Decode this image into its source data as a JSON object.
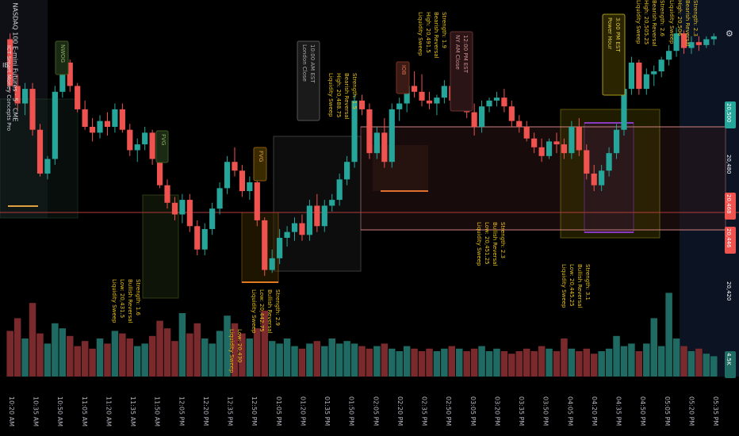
{
  "header": {
    "symbol_line": "NASDAQ 100 E-mini Futures · 5 · CME",
    "indicator_line_1": "IB",
    "indicator_line_2": "ICT Smart Money Concepts Pro",
    "settings_label": "⚙"
  },
  "colors": {
    "up": "#26a69a",
    "down": "#ef5350",
    "volume_up": "#1f6b63",
    "volume_down": "#7a2a2c",
    "annotation": "#e8c21f",
    "range_border": "#c47a7a",
    "price_line": "#b33a3a"
  },
  "time_axis": [
    "10:20 AM",
    "10:35 AM",
    "10:50 AM",
    "11:05 AM",
    "11:20 AM",
    "11:35 AM",
    "11:50 AM",
    "12:05 PM",
    "12:20 PM",
    "12:35 PM",
    "12:50 PM",
    "01:05 PM",
    "01:20 PM",
    "01:35 PM",
    "01:50 PM",
    "02:05 PM",
    "02:20 PM",
    "02:35 PM",
    "02:50 PM",
    "03:05 PM",
    "03:20 PM",
    "03:35 PM",
    "03:50 PM",
    "04:05 PM",
    "04:20 PM",
    "04:35 PM",
    "04:50 PM",
    "05:05 PM",
    "05:20 PM",
    "05:35 PM"
  ],
  "price_axis": [
    {
      "label": "20,500",
      "kind": "tag",
      "color": "#26a69a"
    },
    {
      "label": "20,480",
      "kind": "plain"
    },
    {
      "label": "20,468",
      "kind": "tag",
      "color": "#ef5350"
    },
    {
      "label": "20,446",
      "kind": "tag",
      "color": "#ef5350"
    },
    {
      "label": "20,420",
      "kind": "plain"
    },
    {
      "label": "4.5K",
      "kind": "tag",
      "color": "#1f6b63"
    }
  ],
  "labels": {
    "nwog": "NWOG",
    "fvg": "FVG",
    "iob": "IOB",
    "ib_box": "IB",
    "london_close": "London Close\n10:00 AM EST",
    "ny_am_close": "NY AM Close\n12:00 PM EST",
    "power_hour": "Power Hour\n3:00 PM EST",
    "sweep_low_1": "Liquidity Sweep\nLow: 20,431.5\nBullish Reversal\nStrength: 1.6",
    "sweep_low_2": "Liquidity Sweep\nLow: 20,442.75\nBullish Reversal\nStrength: 2.9",
    "sweep_low_3": "Liquidity Sweep\nLow: 20,430",
    "sweep_low_4": "Liquidity Sweep\nLow: 20,451.25\nBullish Reversal\nStrength: 2.3",
    "sweep_low_5": "Liquidity Sweep\nLow: 20,445.25\nBullish Reversal\nStrength: 3.1",
    "sweep_high_1": "Liquidity Sweep\nHigh: 20,488.75\nBearish Reversal\nStrength: 1.5",
    "sweep_high_2": "Liquidity Sweep\nHigh: 20,491.5\nBearish Reversal\nStrength: 1.9",
    "sweep_high_3": "Liquidity Sweep\nHigh: 20,505.25\nBearish Reversal\nStrength: 2.6",
    "sweep_high_4": "Liquidity Sweep\nHigh: 20,506\nBearish Reversal\nStrength: 2.3"
  },
  "chart_data": {
    "type": "candlestick",
    "volume_range": [
      0,
      5000
    ],
    "candles": [
      [
        20502,
        20504,
        20484,
        20486
      ],
      [
        20486,
        20490,
        20478,
        20480
      ],
      [
        20480,
        20487,
        20476,
        20485
      ],
      [
        20485,
        20487,
        20469,
        20471
      ],
      [
        20471,
        20473,
        20455,
        20456
      ],
      [
        20456,
        20462,
        20454,
        20461
      ],
      [
        20461,
        20486,
        20459,
        20484
      ],
      [
        20484,
        20498,
        20482,
        20494
      ],
      [
        20494,
        20495,
        20484,
        20486
      ],
      [
        20486,
        20487,
        20477,
        20478
      ],
      [
        20478,
        20481,
        20471,
        20472
      ],
      [
        20472,
        20475,
        20467,
        20470
      ],
      [
        20470,
        20476,
        20468,
        20474
      ],
      [
        20474,
        20477,
        20469,
        20472
      ],
      [
        20472,
        20480,
        20470,
        20478
      ],
      [
        20478,
        20480,
        20470,
        20471
      ],
      [
        20471,
        20473,
        20462,
        20464
      ],
      [
        20464,
        20468,
        20460,
        20466
      ],
      [
        20466,
        20472,
        20464,
        20470
      ],
      [
        20470,
        20471,
        20459,
        20461
      ],
      [
        20461,
        20462,
        20451,
        20452
      ],
      [
        20452,
        20454,
        20444,
        20446
      ],
      [
        20446,
        20448,
        20440,
        20442
      ],
      [
        20442,
        20449,
        20439,
        20447
      ],
      [
        20447,
        20449,
        20436,
        20438
      ],
      [
        20438,
        20440,
        20428,
        20430
      ],
      [
        20430,
        20439,
        20428,
        20437
      ],
      [
        20437,
        20446,
        20435,
        20444
      ],
      [
        20444,
        20453,
        20442,
        20451
      ],
      [
        20451,
        20462,
        20449,
        20460
      ],
      [
        20460,
        20465,
        20455,
        20457
      ],
      [
        20457,
        20459,
        20448,
        20450
      ],
      [
        20450,
        20455,
        20447,
        20453
      ],
      [
        20453,
        20455,
        20438,
        20440
      ],
      [
        20440,
        20441,
        20421,
        20423
      ],
      [
        20423,
        20430,
        20422,
        20427
      ],
      [
        20427,
        20437,
        20425,
        20434
      ],
      [
        20434,
        20438,
        20431,
        20436
      ],
      [
        20436,
        20441,
        20433,
        20439
      ],
      [
        20439,
        20442,
        20433,
        20435
      ],
      [
        20435,
        20447,
        20433,
        20445
      ],
      [
        20445,
        20449,
        20436,
        20438
      ],
      [
        20438,
        20447,
        20436,
        20445
      ],
      [
        20445,
        20449,
        20443,
        20447
      ],
      [
        20447,
        20456,
        20445,
        20454
      ],
      [
        20454,
        20462,
        20452,
        20460
      ],
      [
        20460,
        20483,
        20458,
        20481
      ],
      [
        20481,
        20483,
        20476,
        20478
      ],
      [
        20478,
        20480,
        20461,
        20463
      ],
      [
        20463,
        20472,
        20461,
        20470
      ],
      [
        20470,
        20475,
        20458,
        20460
      ],
      [
        20460,
        20480,
        20458,
        20478
      ],
      [
        20478,
        20482,
        20474,
        20480
      ],
      [
        20480,
        20488,
        20477,
        20486
      ],
      [
        20486,
        20491,
        20482,
        20484
      ],
      [
        20484,
        20490,
        20479,
        20481
      ],
      [
        20481,
        20484,
        20478,
        20480
      ],
      [
        20480,
        20483,
        20476,
        20482
      ],
      [
        20482,
        20488,
        20480,
        20486
      ],
      [
        20486,
        20487,
        20479,
        20481
      ],
      [
        20481,
        20491,
        20479,
        20489
      ],
      [
        20489,
        20490,
        20475,
        20477
      ],
      [
        20477,
        20480,
        20469,
        20472
      ],
      [
        20472,
        20481,
        20470,
        20479
      ],
      [
        20479,
        20482,
        20477,
        20481
      ],
      [
        20481,
        20484,
        20479,
        20482
      ],
      [
        20482,
        20485,
        20477,
        20479
      ],
      [
        20479,
        20481,
        20472,
        20474
      ],
      [
        20474,
        20476,
        20470,
        20472
      ],
      [
        20472,
        20474,
        20467,
        20468
      ],
      [
        20468,
        20470,
        20463,
        20465
      ],
      [
        20465,
        20468,
        20460,
        20462
      ],
      [
        20462,
        20468,
        20461,
        20467
      ],
      [
        20467,
        20470,
        20463,
        20466
      ],
      [
        20466,
        20468,
        20461,
        20463
      ],
      [
        20463,
        20474,
        20461,
        20472
      ],
      [
        20472,
        20475,
        20462,
        20464
      ],
      [
        20464,
        20466,
        20454,
        20456
      ],
      [
        20456,
        20459,
        20450,
        20452
      ],
      [
        20452,
        20459,
        20450,
        20457
      ],
      [
        20457,
        20465,
        20455,
        20463
      ],
      [
        20463,
        20473,
        20461,
        20471
      ],
      [
        20471,
        20487,
        20469,
        20485
      ],
      [
        20485,
        20496,
        20483,
        20494
      ],
      [
        20494,
        20495,
        20483,
        20485
      ],
      [
        20485,
        20492,
        20483,
        20490
      ],
      [
        20490,
        20493,
        20486,
        20491
      ],
      [
        20491,
        20496,
        20489,
        20495
      ],
      [
        20495,
        20500,
        20493,
        20498
      ],
      [
        20498,
        20506,
        20496,
        20504
      ],
      [
        20504,
        20505,
        20497,
        20499
      ],
      [
        20499,
        20503,
        20497,
        20501
      ],
      [
        20501,
        20503,
        20498,
        20500
      ],
      [
        20500,
        20503,
        20499,
        20502
      ],
      [
        20502,
        20504,
        20500,
        20503
      ]
    ],
    "volume": [
      1800,
      2300,
      1500,
      2900,
      1700,
      1300,
      2100,
      1900,
      1600,
      1200,
      1400,
      1100,
      1500,
      1300,
      1800,
      1700,
      1500,
      1200,
      1300,
      1600,
      2200,
      1900,
      1400,
      2500,
      1700,
      2100,
      1500,
      1300,
      1800,
      2400,
      2100,
      1700,
      1500,
      1900,
      2600,
      1400,
      1300,
      1500,
      1200,
      1100,
      1300,
      1400,
      1200,
      1500,
      1300,
      1400,
      1300,
      1200,
      1100,
      1200,
      1300,
      1100,
      1000,
      1200,
      1100,
      1000,
      1100,
      1000,
      1100,
      1200,
      1100,
      1000,
      1100,
      1200,
      1000,
      1100,
      1000,
      900,
      1000,
      1100,
      1000,
      1200,
      1100,
      1000,
      1500,
      1100,
      1000,
      1100,
      900,
      1000,
      1100,
      1600,
      1200,
      1300,
      1000,
      1300,
      2300,
      1200,
      3300,
      1500,
      1200,
      1000,
      1100,
      900,
      800
    ]
  }
}
